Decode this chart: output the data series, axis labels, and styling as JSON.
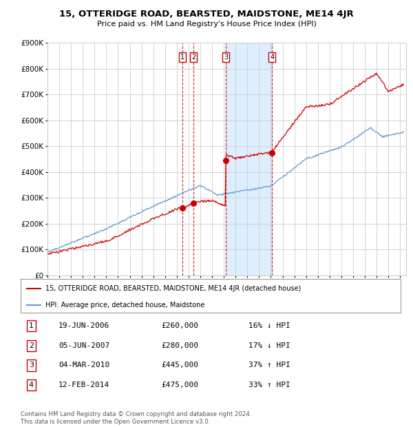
{
  "title": "15, OTTERIDGE ROAD, BEARSTED, MAIDSTONE, ME14 4JR",
  "subtitle": "Price paid vs. HM Land Registry's House Price Index (HPI)",
  "legend_label_red": "15, OTTERIDGE ROAD, BEARSTED, MAIDSTONE, ME14 4JR (detached house)",
  "legend_label_blue": "HPI: Average price, detached house, Maidstone",
  "footer": "Contains HM Land Registry data © Crown copyright and database right 2024.\nThis data is licensed under the Open Government Licence v3.0.",
  "transactions": [
    {
      "num": 1,
      "date": "19-JUN-2006",
      "price": 260000,
      "pct": "16%",
      "dir": "↓",
      "year": 2006.46
    },
    {
      "num": 2,
      "date": "05-JUN-2007",
      "price": 280000,
      "pct": "17%",
      "dir": "↓",
      "year": 2007.42
    },
    {
      "num": 3,
      "date": "04-MAR-2010",
      "price": 445000,
      "pct": "37%",
      "dir": "↑",
      "year": 2010.17
    },
    {
      "num": 4,
      "date": "12-FEB-2014",
      "price": 475000,
      "pct": "33%",
      "dir": "↑",
      "year": 2014.12
    }
  ],
  "shaded_region": [
    2010.17,
    2014.12
  ],
  "ylim": [
    0,
    900000
  ],
  "yticks": [
    0,
    100000,
    200000,
    300000,
    400000,
    500000,
    600000,
    700000,
    800000,
    900000
  ],
  "xlim": [
    1995.0,
    2025.5
  ],
  "red_color": "#cc0000",
  "blue_color": "#6699cc",
  "background_color": "#ffffff",
  "grid_color": "#cccccc",
  "shaded_color": "#ddeeff"
}
